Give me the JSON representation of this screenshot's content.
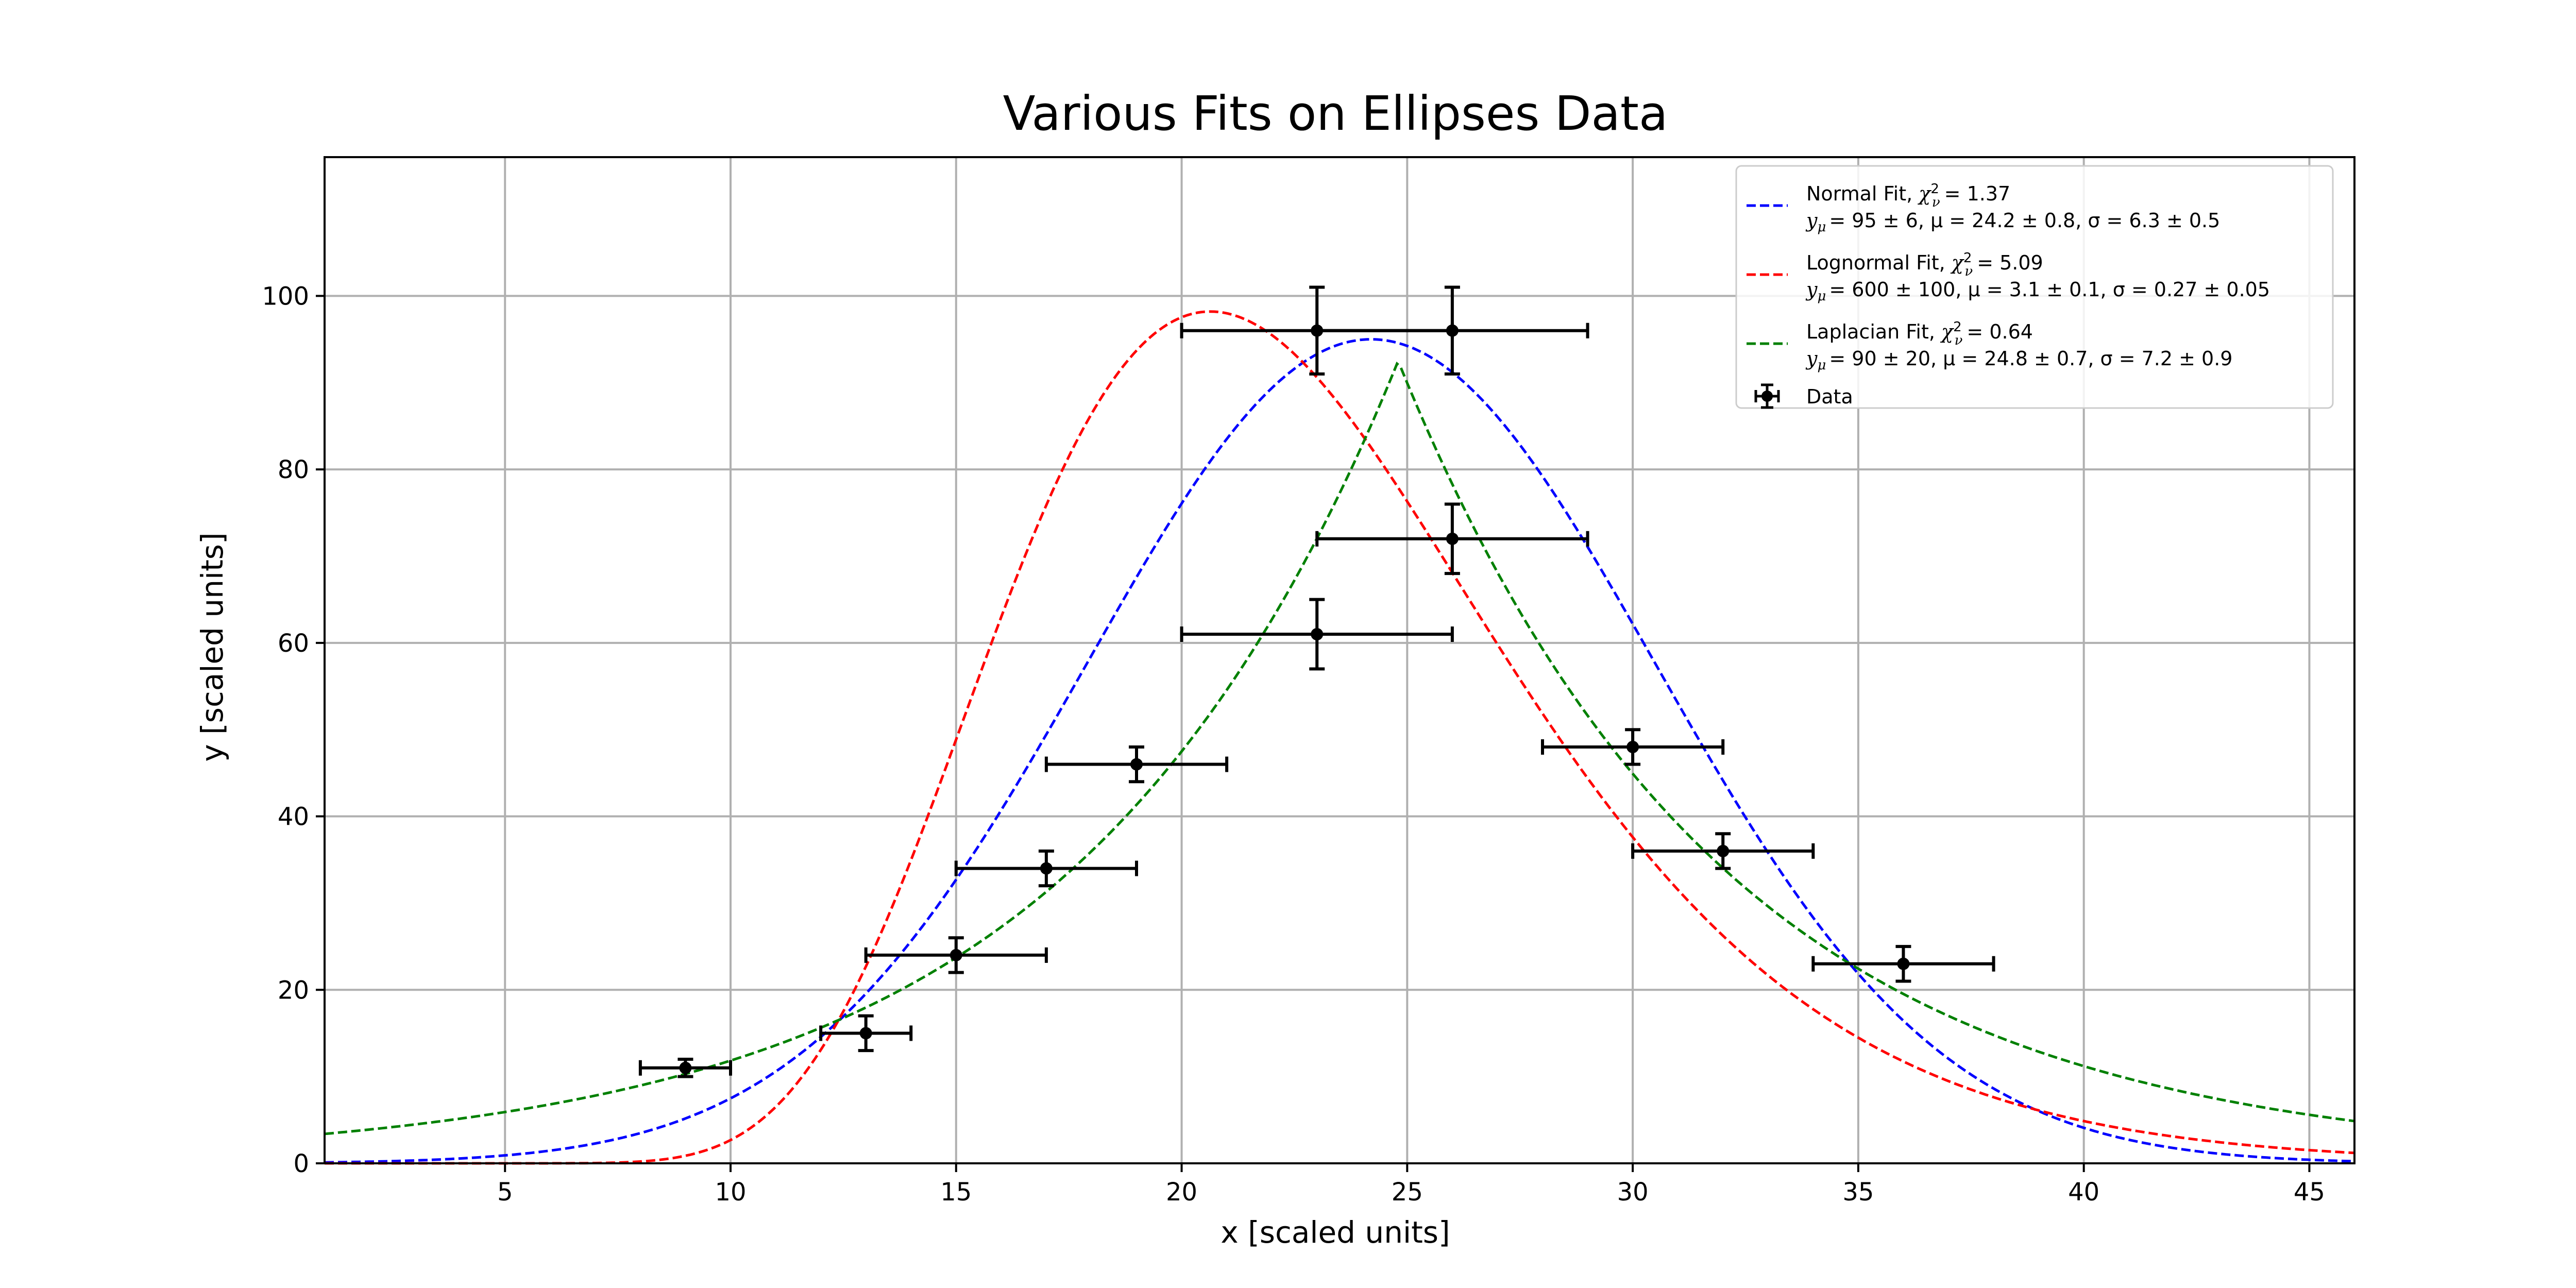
{
  "chart_data": {
    "type": "scatter",
    "title": "Various Fits on Ellipses Data",
    "xlabel": "x [scaled units]",
    "ylabel": "y [scaled units]",
    "xlim": [
      1,
      46
    ],
    "ylim": [
      0,
      116
    ],
    "xticks": [
      5,
      10,
      15,
      20,
      25,
      30,
      35,
      40,
      45
    ],
    "yticks": [
      0,
      20,
      40,
      60,
      80,
      100
    ],
    "grid": true,
    "legend_position": "top-right",
    "data": {
      "name": "Data",
      "color": "#000000",
      "points": [
        {
          "x": 9,
          "y": 11,
          "xerr": 1,
          "yerr": 1
        },
        {
          "x": 13,
          "y": 15,
          "xerr": 1,
          "yerr": 2
        },
        {
          "x": 15,
          "y": 24,
          "xerr": 2,
          "yerr": 2
        },
        {
          "x": 17,
          "y": 34,
          "xerr": 2,
          "yerr": 2
        },
        {
          "x": 19,
          "y": 46,
          "xerr": 2,
          "yerr": 2
        },
        {
          "x": 23,
          "y": 61,
          "xerr": 3,
          "yerr": 4
        },
        {
          "x": 23,
          "y": 96,
          "xerr": 3,
          "yerr": 5
        },
        {
          "x": 26,
          "y": 96,
          "xerr": 3,
          "yerr": 5
        },
        {
          "x": 26,
          "y": 72,
          "xerr": 3,
          "yerr": 4
        },
        {
          "x": 30,
          "y": 48,
          "xerr": 2,
          "yerr": 2
        },
        {
          "x": 32,
          "y": 36,
          "xerr": 2,
          "yerr": 2
        },
        {
          "x": 36,
          "y": 23,
          "xerr": 2,
          "yerr": 2
        }
      ]
    },
    "fits": [
      {
        "model": "normal",
        "color": "#0000ff",
        "label_line1": "Normal Fit, ",
        "chi2": "= 1.37",
        "label_line2": "= 95 ± 6, μ = 24.2 ± 0.8, σ = 6.3 ± 0.5",
        "params": {
          "amp": 95,
          "mu": 24.2,
          "sigma": 6.3
        }
      },
      {
        "model": "lognormal",
        "color": "#ff0000",
        "label_line1": "Lognormal Fit, ",
        "chi2": "= 5.09",
        "label_line2": "= 600 ± 100, μ = 3.1 ± 0.1, σ = 0.27 ± 0.05",
        "params": {
          "amp": 98.2,
          "mu": 3.1,
          "sigma": 0.27
        }
      },
      {
        "model": "laplacian",
        "color": "#008000",
        "label_line1": "Laplacian Fit, ",
        "chi2": "= 0.64",
        "label_line2": "= 90 ± 20, μ = 24.8 ± 0.7, σ = 7.2 ± 0.9",
        "params": {
          "amp": 92.5,
          "mu": 24.8,
          "sigma": 7.2
        }
      }
    ]
  }
}
